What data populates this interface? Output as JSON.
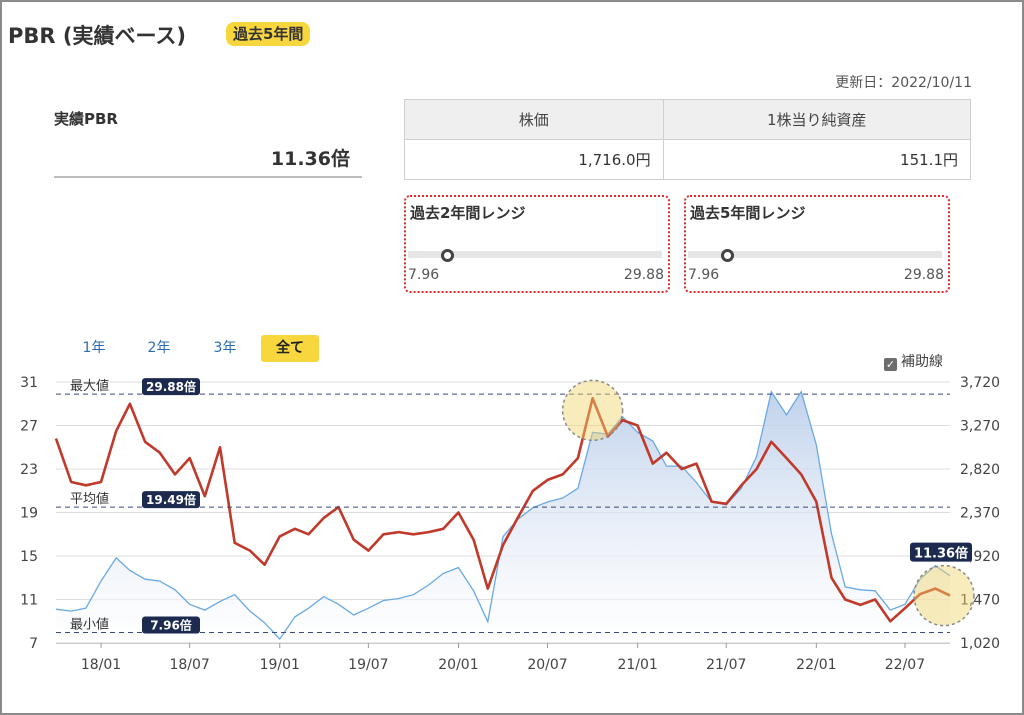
{
  "header": {
    "title": "PBR (実績ベース)",
    "badge": "過去5年間"
  },
  "updated": "更新日：2022/10/11",
  "pbr": {
    "label": "実績PBR",
    "value": "11.36倍"
  },
  "info_table": {
    "headers": [
      "株価",
      "1株当り純資産"
    ],
    "values": [
      "1,716.0円",
      "151.1円"
    ]
  },
  "ranges": [
    {
      "title": "過去2年間レンジ",
      "min": "7.96",
      "max": "29.88",
      "current": 11.36
    },
    {
      "title": "過去5年間レンジ",
      "min": "7.96",
      "max": "29.88",
      "current": 11.36
    }
  ],
  "period_tabs": [
    {
      "label": "1年",
      "active": false
    },
    {
      "label": "2年",
      "active": false
    },
    {
      "label": "3年",
      "active": false
    },
    {
      "label": "全て",
      "active": true
    }
  ],
  "aux_lines": {
    "label": "補助線",
    "checked": true
  },
  "colors": {
    "pbr_line": "#c0392b",
    "price_line": "#6aa9e3",
    "price_fill_top": "#b9cdea",
    "badge": "#f7d63e",
    "ref_label_bg": "#1b2a4e",
    "range_border": "#e0282e",
    "highlight": "#f2d46a"
  },
  "chart_data": {
    "type": "line",
    "x_ticks": [
      "18/01",
      "18/07",
      "19/01",
      "19/07",
      "20/01",
      "20/07",
      "21/01",
      "21/07",
      "22/01",
      "22/07"
    ],
    "y_left": {
      "ticks": [
        "31",
        "27",
        "23",
        "19",
        "15",
        "11",
        "7"
      ],
      "range": [
        7,
        31
      ]
    },
    "y_right": {
      "ticks": [
        "3,720",
        "3,270",
        "2,820",
        "2,370",
        "1,920",
        "1,470",
        "1,020"
      ],
      "range": [
        1020,
        3720
      ]
    },
    "reference_lines": [
      {
        "name": "最大値",
        "value": 29.88,
        "label": "29.88倍"
      },
      {
        "name": "平均値",
        "value": 19.49,
        "label": "19.49倍"
      },
      {
        "name": "最小値",
        "value": 7.96,
        "label": "7.96倍"
      }
    ],
    "current_label": "11.36倍",
    "grid": true,
    "series": [
      {
        "axis": "left",
        "x": [
          "2017-10",
          "2017-11",
          "2017-12",
          "2018-01",
          "2018-02",
          "2018-03",
          "2018-04",
          "2018-05",
          "2018-06",
          "2018-07",
          "2018-08",
          "2018-09",
          "2018-10",
          "2018-11",
          "2018-12",
          "2019-01",
          "2019-02",
          "2019-03",
          "2019-04",
          "2019-05",
          "2019-06",
          "2019-07",
          "2019-08",
          "2019-09",
          "2019-10",
          "2019-11",
          "2019-12",
          "2020-01",
          "2020-02",
          "2020-03",
          "2020-04",
          "2020-05",
          "2020-06",
          "2020-07",
          "2020-08",
          "2020-09",
          "2020-10",
          "2020-11",
          "2020-12",
          "2021-01",
          "2021-02",
          "2021-03",
          "2021-04",
          "2021-05",
          "2021-06",
          "2021-07",
          "2021-08",
          "2021-09",
          "2021-10",
          "2021-11",
          "2021-12",
          "2022-01",
          "2022-02",
          "2022-03",
          "2022-04",
          "2022-05",
          "2022-06",
          "2022-07",
          "2022-08",
          "2022-09",
          "2022-10"
        ],
        "values": [
          25.8,
          21.8,
          21.5,
          21.8,
          26.5,
          29.0,
          25.5,
          24.5,
          22.5,
          24.0,
          20.5,
          25.0,
          16.2,
          15.5,
          14.2,
          16.8,
          17.5,
          17.0,
          18.5,
          19.5,
          16.5,
          15.5,
          17.0,
          17.2,
          17.0,
          17.2,
          17.5,
          19.0,
          16.5,
          12.0,
          16.0,
          18.5,
          21.0,
          22.0,
          22.5,
          24.0,
          29.5,
          26.0,
          27.5,
          27.0,
          23.5,
          24.5,
          23.0,
          23.5,
          20.0,
          19.8,
          21.5,
          23.0,
          25.5,
          24.0,
          22.5,
          20.0,
          13.0,
          11.0,
          10.5,
          11.0,
          9.0,
          10.2,
          11.5,
          12.0,
          11.36
        ]
      },
      {
        "axis": "right",
        "x": [
          "2017-10",
          "2017-11",
          "2017-12",
          "2018-01",
          "2018-02",
          "2018-03",
          "2018-04",
          "2018-05",
          "2018-06",
          "2018-07",
          "2018-08",
          "2018-09",
          "2018-10",
          "2018-11",
          "2018-12",
          "2019-01",
          "2019-02",
          "2019-03",
          "2019-04",
          "2019-05",
          "2019-06",
          "2019-07",
          "2019-08",
          "2019-09",
          "2019-10",
          "2019-11",
          "2019-12",
          "2020-01",
          "2020-02",
          "2020-03",
          "2020-04",
          "2020-05",
          "2020-06",
          "2020-07",
          "2020-08",
          "2020-09",
          "2020-10",
          "2020-11",
          "2020-12",
          "2021-01",
          "2021-02",
          "2021-03",
          "2021-04",
          "2021-05",
          "2021-06",
          "2021-07",
          "2021-08",
          "2021-09",
          "2021-10",
          "2021-11",
          "2021-12",
          "2022-01",
          "2022-02",
          "2022-03",
          "2022-04",
          "2022-05",
          "2022-06",
          "2022-07",
          "2022-08",
          "2022-09",
          "2022-10"
        ],
        "values": [
          1370,
          1350,
          1380,
          1660,
          1900,
          1770,
          1680,
          1660,
          1570,
          1420,
          1360,
          1450,
          1520,
          1350,
          1230,
          1060,
          1290,
          1380,
          1500,
          1420,
          1310,
          1380,
          1460,
          1480,
          1520,
          1620,
          1740,
          1800,
          1560,
          1240,
          2120,
          2300,
          2420,
          2480,
          2520,
          2620,
          3200,
          3180,
          3360,
          3200,
          3110,
          2850,
          2850,
          2680,
          2480,
          2450,
          2620,
          2950,
          3620,
          3380,
          3620,
          3070,
          2150,
          1600,
          1570,
          1560,
          1360,
          1420,
          1680,
          1820,
          1716
        ]
      }
    ]
  }
}
